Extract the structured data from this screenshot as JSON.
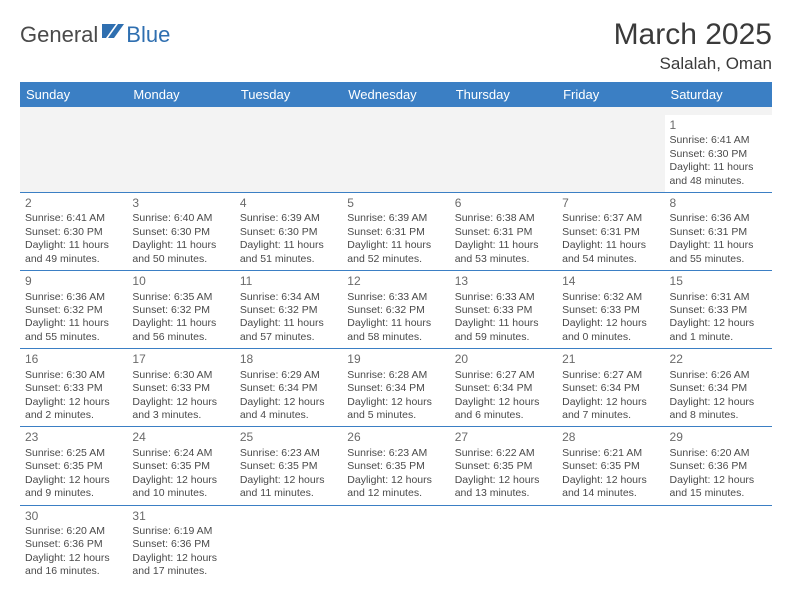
{
  "logo": {
    "part1": "General",
    "part2": "Blue"
  },
  "title": "March 2025",
  "location": "Salalah, Oman",
  "colors": {
    "header_bg": "#3b7fc4",
    "header_text": "#ffffff",
    "row_divider": "#3b7fc4",
    "blank_row_bg": "#f3f3f3",
    "text": "#4a4a4a",
    "logo_blue": "#2f6fb0"
  },
  "weekdays": [
    "Sunday",
    "Monday",
    "Tuesday",
    "Wednesday",
    "Thursday",
    "Friday",
    "Saturday"
  ],
  "weeks": [
    [
      null,
      null,
      null,
      null,
      null,
      null,
      {
        "d": "1",
        "sr": "Sunrise: 6:41 AM",
        "ss": "Sunset: 6:30 PM",
        "dl1": "Daylight: 11 hours",
        "dl2": "and 48 minutes."
      }
    ],
    [
      {
        "d": "2",
        "sr": "Sunrise: 6:41 AM",
        "ss": "Sunset: 6:30 PM",
        "dl1": "Daylight: 11 hours",
        "dl2": "and 49 minutes."
      },
      {
        "d": "3",
        "sr": "Sunrise: 6:40 AM",
        "ss": "Sunset: 6:30 PM",
        "dl1": "Daylight: 11 hours",
        "dl2": "and 50 minutes."
      },
      {
        "d": "4",
        "sr": "Sunrise: 6:39 AM",
        "ss": "Sunset: 6:30 PM",
        "dl1": "Daylight: 11 hours",
        "dl2": "and 51 minutes."
      },
      {
        "d": "5",
        "sr": "Sunrise: 6:39 AM",
        "ss": "Sunset: 6:31 PM",
        "dl1": "Daylight: 11 hours",
        "dl2": "and 52 minutes."
      },
      {
        "d": "6",
        "sr": "Sunrise: 6:38 AM",
        "ss": "Sunset: 6:31 PM",
        "dl1": "Daylight: 11 hours",
        "dl2": "and 53 minutes."
      },
      {
        "d": "7",
        "sr": "Sunrise: 6:37 AM",
        "ss": "Sunset: 6:31 PM",
        "dl1": "Daylight: 11 hours",
        "dl2": "and 54 minutes."
      },
      {
        "d": "8",
        "sr": "Sunrise: 6:36 AM",
        "ss": "Sunset: 6:31 PM",
        "dl1": "Daylight: 11 hours",
        "dl2": "and 55 minutes."
      }
    ],
    [
      {
        "d": "9",
        "sr": "Sunrise: 6:36 AM",
        "ss": "Sunset: 6:32 PM",
        "dl1": "Daylight: 11 hours",
        "dl2": "and 55 minutes."
      },
      {
        "d": "10",
        "sr": "Sunrise: 6:35 AM",
        "ss": "Sunset: 6:32 PM",
        "dl1": "Daylight: 11 hours",
        "dl2": "and 56 minutes."
      },
      {
        "d": "11",
        "sr": "Sunrise: 6:34 AM",
        "ss": "Sunset: 6:32 PM",
        "dl1": "Daylight: 11 hours",
        "dl2": "and 57 minutes."
      },
      {
        "d": "12",
        "sr": "Sunrise: 6:33 AM",
        "ss": "Sunset: 6:32 PM",
        "dl1": "Daylight: 11 hours",
        "dl2": "and 58 minutes."
      },
      {
        "d": "13",
        "sr": "Sunrise: 6:33 AM",
        "ss": "Sunset: 6:33 PM",
        "dl1": "Daylight: 11 hours",
        "dl2": "and 59 minutes."
      },
      {
        "d": "14",
        "sr": "Sunrise: 6:32 AM",
        "ss": "Sunset: 6:33 PM",
        "dl1": "Daylight: 12 hours",
        "dl2": "and 0 minutes."
      },
      {
        "d": "15",
        "sr": "Sunrise: 6:31 AM",
        "ss": "Sunset: 6:33 PM",
        "dl1": "Daylight: 12 hours",
        "dl2": "and 1 minute."
      }
    ],
    [
      {
        "d": "16",
        "sr": "Sunrise: 6:30 AM",
        "ss": "Sunset: 6:33 PM",
        "dl1": "Daylight: 12 hours",
        "dl2": "and 2 minutes."
      },
      {
        "d": "17",
        "sr": "Sunrise: 6:30 AM",
        "ss": "Sunset: 6:33 PM",
        "dl1": "Daylight: 12 hours",
        "dl2": "and 3 minutes."
      },
      {
        "d": "18",
        "sr": "Sunrise: 6:29 AM",
        "ss": "Sunset: 6:34 PM",
        "dl1": "Daylight: 12 hours",
        "dl2": "and 4 minutes."
      },
      {
        "d": "19",
        "sr": "Sunrise: 6:28 AM",
        "ss": "Sunset: 6:34 PM",
        "dl1": "Daylight: 12 hours",
        "dl2": "and 5 minutes."
      },
      {
        "d": "20",
        "sr": "Sunrise: 6:27 AM",
        "ss": "Sunset: 6:34 PM",
        "dl1": "Daylight: 12 hours",
        "dl2": "and 6 minutes."
      },
      {
        "d": "21",
        "sr": "Sunrise: 6:27 AM",
        "ss": "Sunset: 6:34 PM",
        "dl1": "Daylight: 12 hours",
        "dl2": "and 7 minutes."
      },
      {
        "d": "22",
        "sr": "Sunrise: 6:26 AM",
        "ss": "Sunset: 6:34 PM",
        "dl1": "Daylight: 12 hours",
        "dl2": "and 8 minutes."
      }
    ],
    [
      {
        "d": "23",
        "sr": "Sunrise: 6:25 AM",
        "ss": "Sunset: 6:35 PM",
        "dl1": "Daylight: 12 hours",
        "dl2": "and 9 minutes."
      },
      {
        "d": "24",
        "sr": "Sunrise: 6:24 AM",
        "ss": "Sunset: 6:35 PM",
        "dl1": "Daylight: 12 hours",
        "dl2": "and 10 minutes."
      },
      {
        "d": "25",
        "sr": "Sunrise: 6:23 AM",
        "ss": "Sunset: 6:35 PM",
        "dl1": "Daylight: 12 hours",
        "dl2": "and 11 minutes."
      },
      {
        "d": "26",
        "sr": "Sunrise: 6:23 AM",
        "ss": "Sunset: 6:35 PM",
        "dl1": "Daylight: 12 hours",
        "dl2": "and 12 minutes."
      },
      {
        "d": "27",
        "sr": "Sunrise: 6:22 AM",
        "ss": "Sunset: 6:35 PM",
        "dl1": "Daylight: 12 hours",
        "dl2": "and 13 minutes."
      },
      {
        "d": "28",
        "sr": "Sunrise: 6:21 AM",
        "ss": "Sunset: 6:35 PM",
        "dl1": "Daylight: 12 hours",
        "dl2": "and 14 minutes."
      },
      {
        "d": "29",
        "sr": "Sunrise: 6:20 AM",
        "ss": "Sunset: 6:36 PM",
        "dl1": "Daylight: 12 hours",
        "dl2": "and 15 minutes."
      }
    ],
    [
      {
        "d": "30",
        "sr": "Sunrise: 6:20 AM",
        "ss": "Sunset: 6:36 PM",
        "dl1": "Daylight: 12 hours",
        "dl2": "and 16 minutes."
      },
      {
        "d": "31",
        "sr": "Sunrise: 6:19 AM",
        "ss": "Sunset: 6:36 PM",
        "dl1": "Daylight: 12 hours",
        "dl2": "and 17 minutes."
      },
      null,
      null,
      null,
      null,
      null
    ]
  ]
}
